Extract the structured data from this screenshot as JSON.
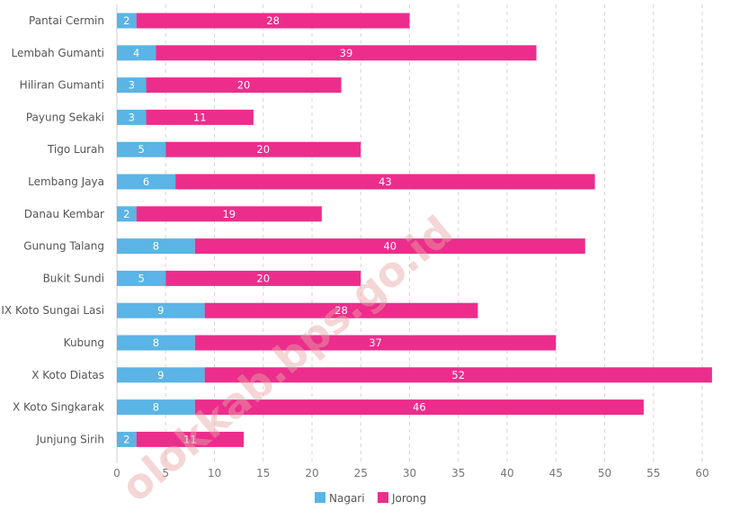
{
  "chart_data": {
    "type": "bar",
    "orientation": "horizontal",
    "stacked": true,
    "categories": [
      "Pantai Cermin",
      "Lembah Gumanti",
      "Hiliran Gumanti",
      "Payung Sekaki",
      "Tigo Lurah",
      "Lembang Jaya",
      "Danau Kembar",
      "Gunung Talang",
      "Bukit Sundi",
      "IX Koto Sungai Lasi",
      "Kubung",
      "X Koto Diatas",
      "X Koto Singkarak",
      "Junjung Sirih"
    ],
    "series": [
      {
        "name": "Nagari",
        "color": "#5ab4e5",
        "values": [
          2,
          4,
          3,
          3,
          5,
          6,
          2,
          8,
          5,
          9,
          8,
          9,
          8,
          2
        ]
      },
      {
        "name": "Jorong",
        "color": "#ec2d8c",
        "values": [
          28,
          39,
          20,
          11,
          20,
          43,
          19,
          40,
          20,
          28,
          37,
          52,
          46,
          11
        ]
      }
    ],
    "xlim": [
      0,
      62
    ],
    "xticks": [
      0,
      5,
      10,
      15,
      20,
      25,
      30,
      35,
      40,
      45,
      50,
      55,
      60
    ],
    "grid": "vertical dashed",
    "legend_position": "bottom-center",
    "data_labels": true
  },
  "watermark": "olokkab.bps.go.id"
}
